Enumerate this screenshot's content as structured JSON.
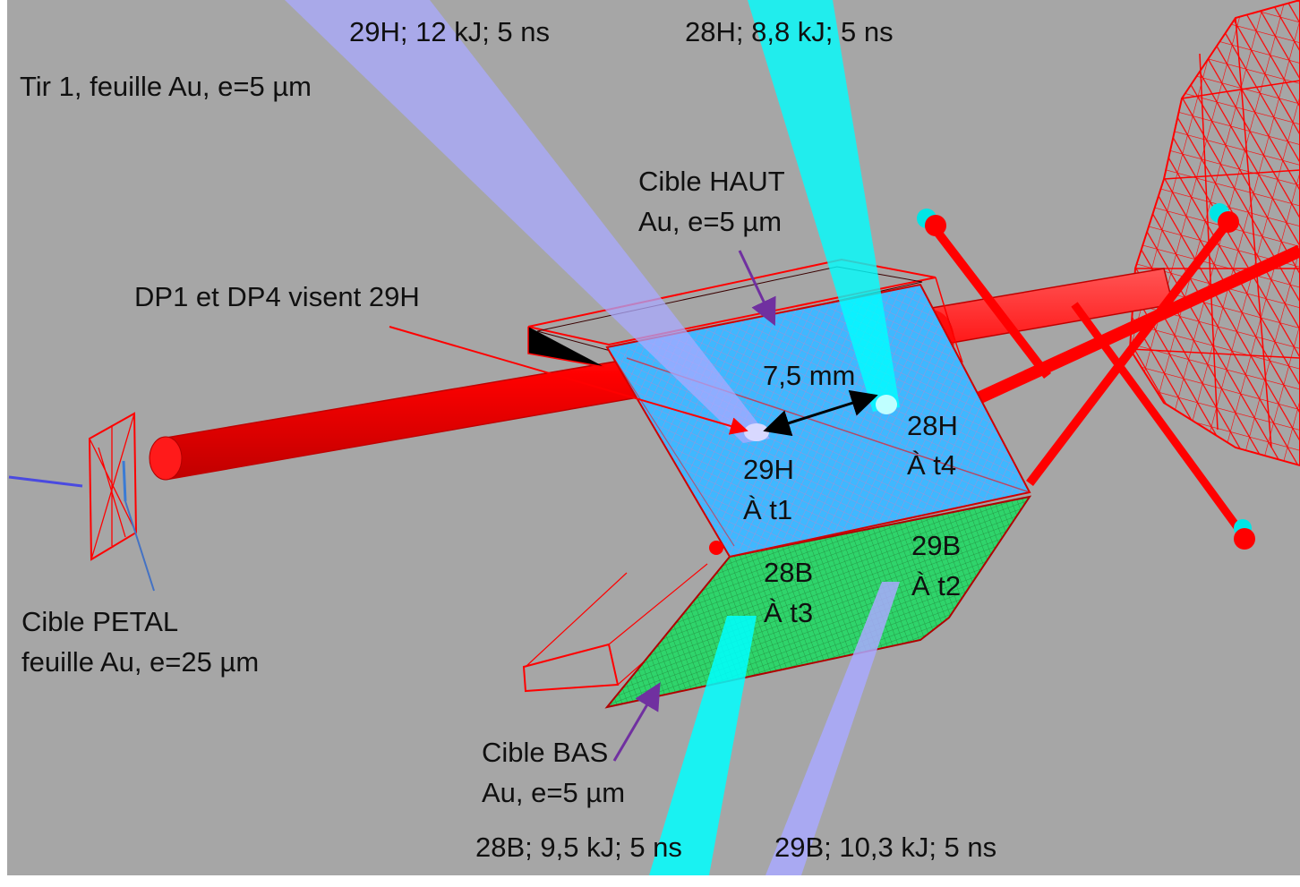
{
  "colors": {
    "background": "#a6a6a6",
    "frame": "#ff0000",
    "beam_blue": "#a9a9ff",
    "beam_cyan": "#00ffff",
    "target_top": "#3fb8ff",
    "target_bottom": "#2fd46b",
    "label_text": "#101010",
    "arrow_purple": "#7030a0",
    "arrow_red": "#ff0000",
    "arrow_blue": "#4472c4"
  },
  "labels": {
    "shot_title": "Tir 1, feuille Au, e=5 µm",
    "beam_29h": "29H; 12 kJ; 5 ns",
    "beam_28h": "28H; 8,8 kJ; 5 ns",
    "beam_28b": "28B; 9,5 kJ; 5 ns",
    "beam_29b": "29B; 10,3 kJ; 5 ns",
    "target_top_line1": "Cible HAUT",
    "target_top_line2": "Au, e=5 µm",
    "diagnostic": "DP1 et DP4 visent 29H",
    "distance": "7,5 mm",
    "spot_29h_line1": "29H",
    "spot_29h_line2": "À t1",
    "spot_28h_line1": "28H",
    "spot_28h_line2": "À t4",
    "spot_28b_line1": "28B",
    "spot_28b_line2": "À t3",
    "spot_29b_line1": "29B",
    "spot_29b_line2": "À t2",
    "petal_line1": "Cible PETAL",
    "petal_line2": "feuille Au, e=25 µm",
    "target_bottom_line1": "Cible BAS",
    "target_bottom_line2": "Au, e=5 µm"
  }
}
